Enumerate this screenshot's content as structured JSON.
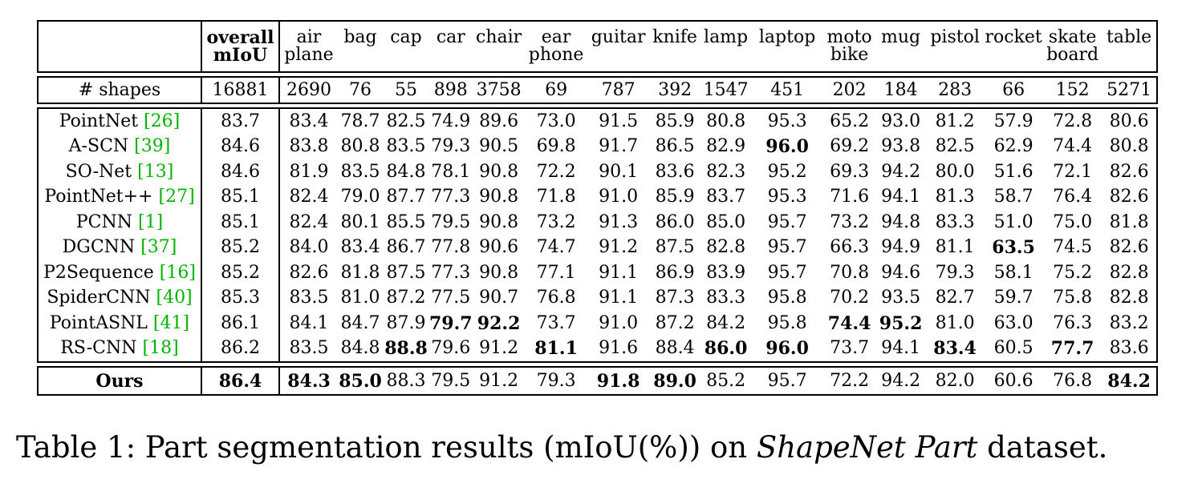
{
  "header": {
    "row1": [
      "",
      "overall",
      "air",
      "bag",
      "cap",
      "car",
      "chair",
      "ear",
      "guitar",
      "knife",
      "lamp",
      "laptop",
      "moto",
      "mug",
      "pistol",
      "rocket",
      "skate",
      "table"
    ],
    "row2": [
      "",
      "mIoU",
      "plane",
      "",
      "",
      "",
      "",
      "phone",
      "",
      "",
      "",
      "",
      "bike",
      "",
      "",
      "",
      "board",
      ""
    ]
  },
  "shapes": [
    "# shapes",
    "16881",
    "2690",
    "76",
    "55",
    "898",
    "3758",
    "69",
    "787",
    "392",
    "1547",
    "451",
    "202",
    "184",
    "283",
    "66",
    "152",
    "5271"
  ],
  "methods": [
    {
      "name": "PointNet",
      "ref": "[26]",
      "values": [
        "83.7",
        "83.4",
        "78.7",
        "82.5",
        "74.9",
        "89.6",
        "73.0",
        "91.5",
        "85.9",
        "80.8",
        "95.3",
        "65.2",
        "93.0",
        "81.2",
        "57.9",
        "72.8",
        "80.6"
      ],
      "bold": []
    },
    {
      "name": "A-SCN",
      "ref": "[39]",
      "values": [
        "84.6",
        "83.8",
        "80.8",
        "83.5",
        "79.3",
        "90.5",
        "69.8",
        "91.7",
        "86.5",
        "82.9",
        "96.0",
        "69.2",
        "93.8",
        "82.5",
        "62.9",
        "74.4",
        "80.8"
      ],
      "bold": [
        10
      ]
    },
    {
      "name": "SO-Net",
      "ref": "[13]",
      "values": [
        "84.6",
        "81.9",
        "83.5",
        "84.8",
        "78.1",
        "90.8",
        "72.2",
        "90.1",
        "83.6",
        "82.3",
        "95.2",
        "69.3",
        "94.2",
        "80.0",
        "51.6",
        "72.1",
        "82.6"
      ],
      "bold": []
    },
    {
      "name": "PointNet++",
      "ref": "[27]",
      "values": [
        "85.1",
        "82.4",
        "79.0",
        "87.7",
        "77.3",
        "90.8",
        "71.8",
        "91.0",
        "85.9",
        "83.7",
        "95.3",
        "71.6",
        "94.1",
        "81.3",
        "58.7",
        "76.4",
        "82.6"
      ],
      "bold": []
    },
    {
      "name": "PCNN",
      "ref": "[1]",
      "values": [
        "85.1",
        "82.4",
        "80.1",
        "85.5",
        "79.5",
        "90.8",
        "73.2",
        "91.3",
        "86.0",
        "85.0",
        "95.7",
        "73.2",
        "94.8",
        "83.3",
        "51.0",
        "75.0",
        "81.8"
      ],
      "bold": []
    },
    {
      "name": "DGCNN",
      "ref": "[37]",
      "values": [
        "85.2",
        "84.0",
        "83.4",
        "86.7",
        "77.8",
        "90.6",
        "74.7",
        "91.2",
        "87.5",
        "82.8",
        "95.7",
        "66.3",
        "94.9",
        "81.1",
        "63.5",
        "74.5",
        "82.6"
      ],
      "bold": [
        14
      ]
    },
    {
      "name": "P2Sequence",
      "ref": "[16]",
      "values": [
        "85.2",
        "82.6",
        "81.8",
        "87.5",
        "77.3",
        "90.8",
        "77.1",
        "91.1",
        "86.9",
        "83.9",
        "95.7",
        "70.8",
        "94.6",
        "79.3",
        "58.1",
        "75.2",
        "82.8"
      ],
      "bold": []
    },
    {
      "name": "SpiderCNN",
      "ref": "[40]",
      "values": [
        "85.3",
        "83.5",
        "81.0",
        "87.2",
        "77.5",
        "90.7",
        "76.8",
        "91.1",
        "87.3",
        "83.3",
        "95.8",
        "70.2",
        "93.5",
        "82.7",
        "59.7",
        "75.8",
        "82.8"
      ],
      "bold": []
    },
    {
      "name": "PointASNL",
      "ref": "[41]",
      "values": [
        "86.1",
        "84.1",
        "84.7",
        "87.9",
        "79.7",
        "92.2",
        "73.7",
        "91.0",
        "87.2",
        "84.2",
        "95.8",
        "74.4",
        "95.2",
        "81.0",
        "63.0",
        "76.3",
        "83.2"
      ],
      "bold": [
        4,
        5,
        11,
        12
      ]
    },
    {
      "name": "RS-CNN",
      "ref": "[18]",
      "values": [
        "86.2",
        "83.5",
        "84.8",
        "88.8",
        "79.6",
        "91.2",
        "81.1",
        "91.6",
        "88.4",
        "86.0",
        "96.0",
        "73.7",
        "94.1",
        "83.4",
        "60.5",
        "77.7",
        "83.6"
      ],
      "bold": [
        3,
        6,
        9,
        10,
        13,
        15
      ]
    }
  ],
  "ours": {
    "name": "Ours",
    "values": [
      "86.4",
      "84.3",
      "85.0",
      "88.3",
      "79.5",
      "91.2",
      "79.3",
      "91.8",
      "89.0",
      "85.2",
      "95.7",
      "72.2",
      "94.2",
      "82.0",
      "60.6",
      "76.8",
      "84.2"
    ],
    "bold": [
      0,
      1,
      2,
      7,
      8,
      16
    ]
  },
  "caption": {
    "prefix": "Table 1: Part segmentation results (mIoU(%)) on ",
    "dataset": "ShapeNet Part",
    "suffix": " dataset."
  }
}
